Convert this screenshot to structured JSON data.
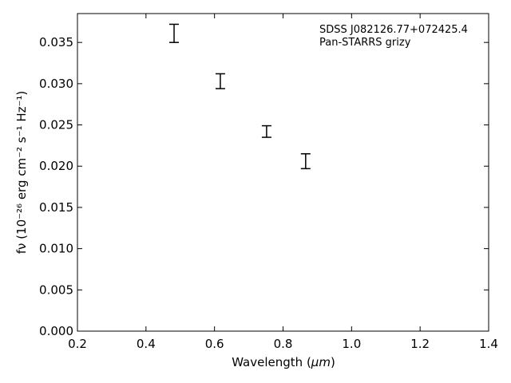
{
  "chart_data": {
    "type": "errorbar",
    "annotations": [
      "SDSS J082126.77+072425.4",
      "Pan-STARRS grizy"
    ],
    "xlabel": {
      "text": "Wavelength (",
      "unit": "μm",
      "close": ")"
    },
    "ylabel": {
      "text": "fν (10⁻²⁶ erg cm⁻² s⁻¹ Hz⁻¹)"
    },
    "xlim": [
      0.2,
      1.4
    ],
    "ylim": [
      0.0,
      0.0385
    ],
    "xticks": [
      0.2,
      0.4,
      0.6,
      0.8,
      1.0,
      1.2,
      1.4
    ],
    "xtick_labels": [
      "0.2",
      "0.4",
      "0.6",
      "0.8",
      "1.0",
      "1.2",
      "1.4"
    ],
    "yticks": [
      0.0,
      0.005,
      0.01,
      0.015,
      0.02,
      0.025,
      0.03,
      0.035
    ],
    "ytick_labels": [
      "0.000",
      "0.005",
      "0.010",
      "0.015",
      "0.020",
      "0.025",
      "0.030",
      "0.035"
    ],
    "grid": false,
    "points": [
      {
        "x": 0.482,
        "y": 0.0361,
        "yerr": 0.0011
      },
      {
        "x": 0.617,
        "y": 0.0303,
        "yerr": 0.0009
      },
      {
        "x": 0.752,
        "y": 0.0242,
        "yerr": 0.0007
      },
      {
        "x": 0.866,
        "y": 0.0206,
        "yerr": 0.0009
      }
    ]
  }
}
